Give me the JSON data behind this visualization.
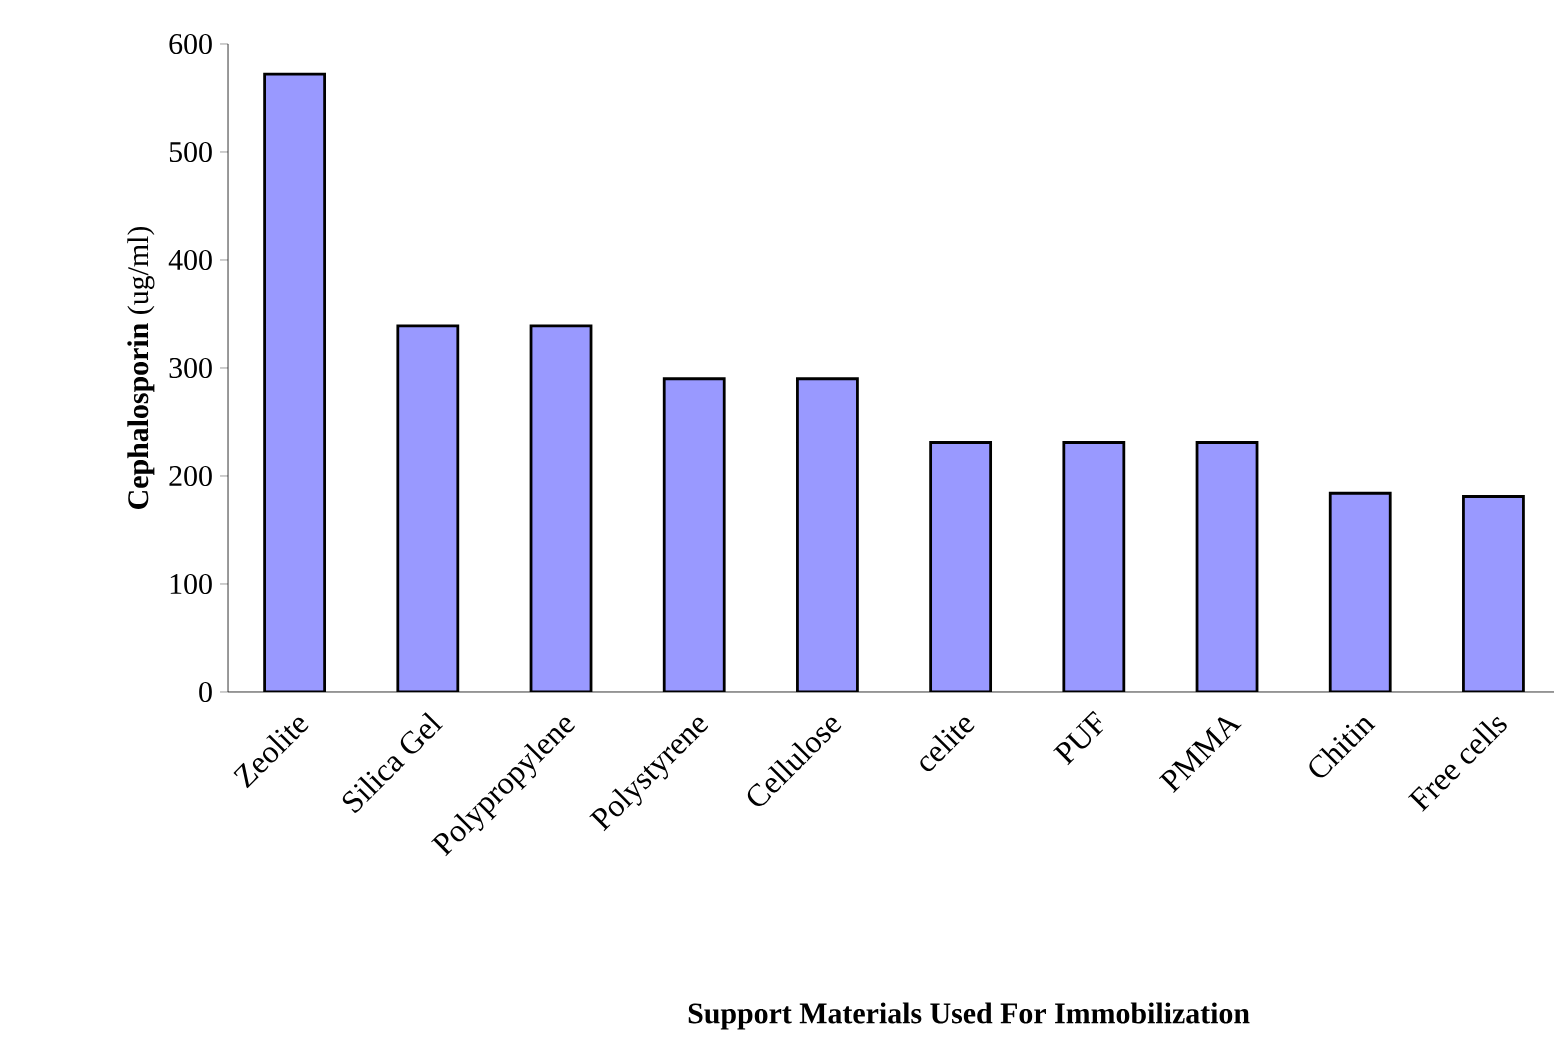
{
  "chart_data": {
    "type": "bar",
    "xlabel": "Support Materials Used For Immobilization",
    "ylabel": "**Cephalosporin** (ug/ml)",
    "categories": [
      "Zeolite",
      "Silica Gel",
      "Polypropylene",
      "Polystyrene",
      "Cellulose",
      "celite",
      "PUF",
      "PMMA",
      "Chitin",
      "Free cells"
    ],
    "values": [
      572,
      339,
      339,
      290,
      290,
      231,
      231,
      231,
      184,
      181
    ],
    "color": "#9999ff",
    "ylim": [
      0,
      600
    ],
    "yticks": [
      0,
      100,
      200,
      300,
      400,
      500,
      600
    ],
    "grid": false
  }
}
